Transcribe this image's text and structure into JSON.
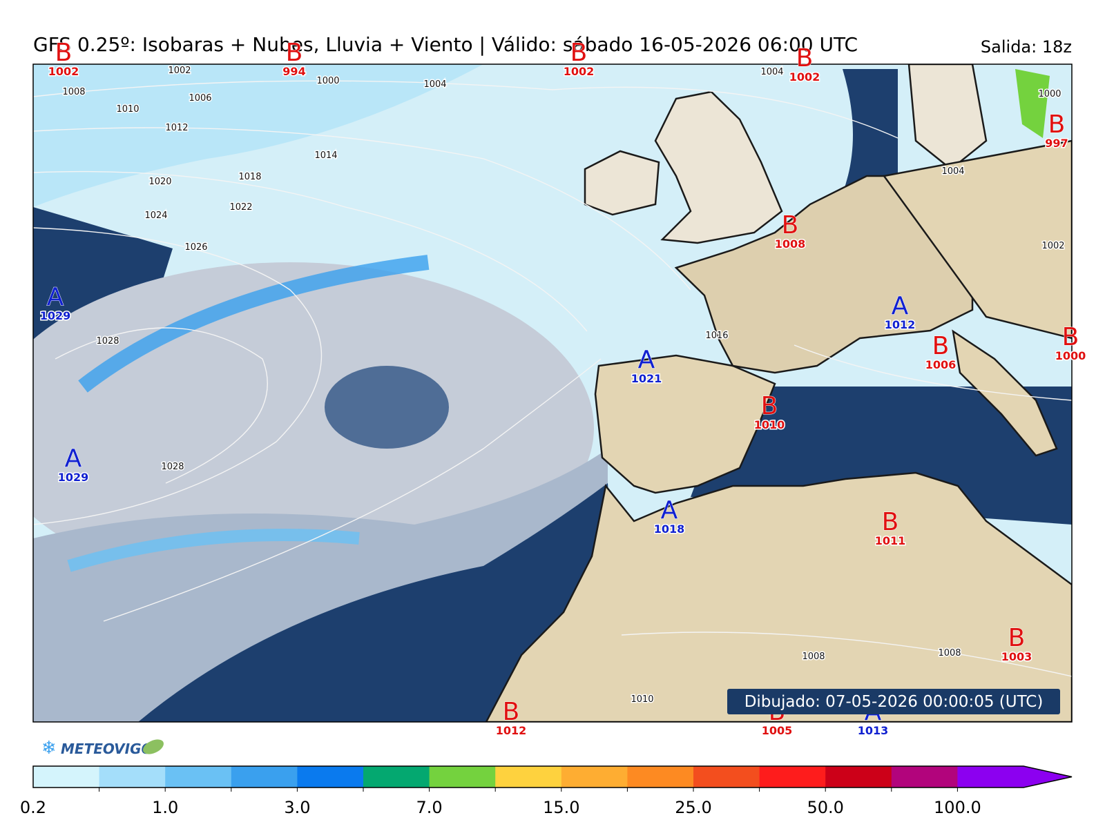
{
  "header": {
    "title": "GFS 0.25º: Isobaras + Nubes, Lluvia + Viento | Válido: sábado 16-05-2026 06:00 UTC",
    "run": "Salida: 18z"
  },
  "pressure_centers": [
    {
      "letter": "B",
      "value": "1002"
    },
    {
      "letter": "B",
      "value": "994"
    },
    {
      "letter": "B",
      "value": "1002"
    },
    {
      "letter": "B",
      "value": "1002"
    },
    {
      "letter": "B",
      "value": "997"
    },
    {
      "letter": "A",
      "value": "1029"
    },
    {
      "letter": "B",
      "value": "1008"
    },
    {
      "letter": "A",
      "value": "1012"
    },
    {
      "letter": "B",
      "value": "1000"
    },
    {
      "letter": "B",
      "value": "1006"
    },
    {
      "letter": "A",
      "value": "1021"
    },
    {
      "letter": "B",
      "value": "1010"
    },
    {
      "letter": "A",
      "value": "1029"
    },
    {
      "letter": "A",
      "value": "1018"
    },
    {
      "letter": "B",
      "value": "1011"
    },
    {
      "letter": "B",
      "value": "1003"
    },
    {
      "letter": "B",
      "value": "1012"
    },
    {
      "letter": "B",
      "value": "1005"
    },
    {
      "letter": "A",
      "value": "1013"
    }
  ],
  "isobar_labels": [
    "1002",
    "1000",
    "1004",
    "1008",
    "1006",
    "1010",
    "1012",
    "1014",
    "1018",
    "1020",
    "1022",
    "1024",
    "1026",
    "1028",
    "1028",
    "1016",
    "1004",
    "1000",
    "1004",
    "1002",
    "1008",
    "1008",
    "1010"
  ],
  "drawn": "Dibujado: 07-05-2026 00:00:05 (UTC)",
  "logo": "METEOVIGO",
  "colorbar": {
    "colors": [
      "#d4f4fc",
      "#a4defa",
      "#6ac1f4",
      "#3aa0ee",
      "#0a7aee",
      "#04a870",
      "#74d23e",
      "#fed23e",
      "#fead32",
      "#fd8a22",
      "#f34e1e",
      "#fe1c1c",
      "#cc0018",
      "#b2047c",
      "#8c00f0"
    ],
    "extend_color": "#8c00f0",
    "ticks": [
      "0.2",
      "1.0",
      "3.0",
      "7.0",
      "15.0",
      "25.0",
      "50.0",
      "100.0"
    ]
  }
}
